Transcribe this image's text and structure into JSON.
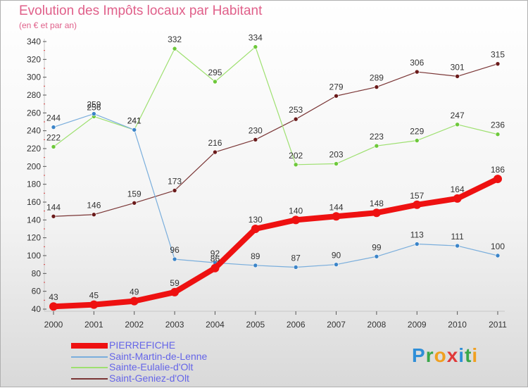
{
  "title": "Evolution des Impôts locaux par Habitant",
  "subtitle": "(en € et par an)",
  "logo": {
    "text": "Proxiti",
    "letters": [
      {
        "ch": "P",
        "color": "#2f8fd8"
      },
      {
        "ch": "r",
        "color": "#3aa74a"
      },
      {
        "ch": "o",
        "color": "#f0a020"
      },
      {
        "ch": "x",
        "color": "#e03a3a"
      },
      {
        "ch": "i",
        "color": "#2f8fd8"
      },
      {
        "ch": "t",
        "color": "#3aa74a"
      },
      {
        "ch": "i",
        "color": "#f0a020"
      }
    ]
  },
  "chart_data": {
    "type": "line",
    "x": [
      "2000",
      "2001",
      "2002",
      "2003",
      "2004",
      "2005",
      "2006",
      "2007",
      "2008",
      "2009",
      "2010",
      "2011"
    ],
    "ylim": [
      40,
      340
    ],
    "yticks": [
      40,
      60,
      80,
      100,
      120,
      140,
      160,
      180,
      200,
      220,
      240,
      260,
      280,
      300,
      320,
      340
    ],
    "grid": false,
    "legend_position": "bottom-left",
    "series": [
      {
        "name": "PIERREFICHE",
        "color": "#ee1111",
        "marker": "#ee1111",
        "width": 8,
        "values": [
          43,
          45,
          49,
          59,
          86,
          130,
          140,
          144,
          148,
          157,
          164,
          186
        ]
      },
      {
        "name": "Saint-Martin-de-Lenne",
        "color": "#7aaedc",
        "marker": "#3b84c8",
        "width": 1.2,
        "values": [
          244,
          259,
          241,
          96,
          92,
          89,
          87,
          90,
          99,
          113,
          111,
          100
        ]
      },
      {
        "name": "Sainte-Eulalie-d'Olt",
        "color": "#9ee070",
        "marker": "#6dc83a",
        "width": 1.2,
        "values": [
          222,
          256,
          241,
          332,
          295,
          334,
          202,
          203,
          223,
          229,
          247,
          236
        ]
      },
      {
        "name": "Saint-Geniez-d'Olt",
        "color": "#7a3535",
        "marker": "#6a1a1a",
        "width": 1.2,
        "values": [
          144,
          146,
          159,
          173,
          216,
          230,
          253,
          279,
          289,
          306,
          301,
          315
        ]
      }
    ]
  }
}
